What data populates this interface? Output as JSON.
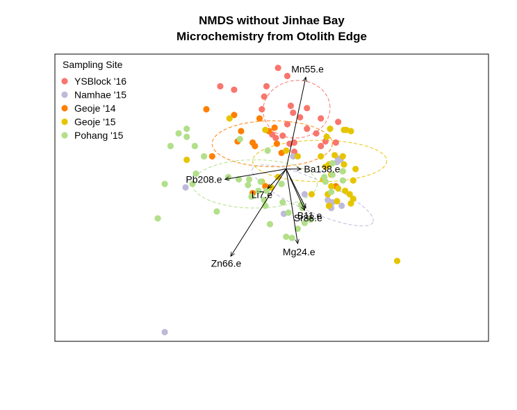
{
  "chart_data": {
    "type": "scatter",
    "title": "NMDS without Jinhae Bay",
    "subtitle": "Microchemistry from Otolith Edge",
    "xlabel": "",
    "ylabel": "",
    "xlim": [
      -2.0,
      1.75
    ],
    "ylim": [
      -1.5,
      1.0
    ],
    "grid": false,
    "legend": {
      "title": "Sampling Site",
      "placement": "top-left"
    },
    "series": [
      {
        "name": "YSBlock '16",
        "color": "#F8766D",
        "points": [
          [
            -0.07,
            0.88
          ],
          [
            0.01,
            0.81
          ],
          [
            -0.57,
            0.72
          ],
          [
            -0.45,
            0.69
          ],
          [
            -0.17,
            0.72
          ],
          [
            -0.19,
            0.63
          ],
          [
            0.04,
            0.55
          ],
          [
            0.18,
            0.53
          ],
          [
            -0.21,
            0.52
          ],
          [
            0.06,
            0.49
          ],
          [
            0.12,
            0.45
          ],
          [
            0.3,
            0.44
          ],
          [
            0.45,
            0.41
          ],
          [
            0.01,
            0.39
          ],
          [
            0.18,
            0.35
          ],
          [
            -0.12,
            0.3
          ],
          [
            -0.03,
            0.29
          ],
          [
            0.26,
            0.31
          ],
          [
            0.43,
            0.23
          ],
          [
            0.07,
            0.23
          ],
          [
            -0.09,
            0.27
          ],
          [
            0.3,
            0.2
          ],
          [
            0.34,
            0.24
          ],
          [
            0.03,
            0.22
          ],
          [
            0.07,
            0.15
          ]
        ]
      },
      {
        "name": "Namhae '15",
        "color": "#BEBADA",
        "points": [
          [
            -1.05,
            -1.42
          ],
          [
            -0.87,
            -0.16
          ],
          [
            0.06,
            0.11
          ],
          [
            0.16,
            -0.22
          ],
          [
            0.45,
            0.09
          ],
          [
            0.36,
            -0.27
          ],
          [
            0.4,
            -0.29
          ],
          [
            0.48,
            -0.32
          ],
          [
            0.39,
            -0.34
          ],
          [
            -0.02,
            -0.39
          ],
          [
            0.44,
            0.06
          ],
          [
            0.47,
            0.08
          ]
        ]
      },
      {
        "name": "Geoje '14",
        "color": "#FF7F00",
        "points": [
          [
            -0.69,
            0.52
          ],
          [
            -0.45,
            0.47
          ],
          [
            -0.23,
            0.44
          ],
          [
            -0.1,
            0.36
          ],
          [
            -0.39,
            0.33
          ],
          [
            -0.42,
            0.24
          ],
          [
            -0.29,
            0.23
          ],
          [
            -0.08,
            0.22
          ],
          [
            -0.64,
            0.11
          ],
          [
            -0.15,
            0.33
          ],
          [
            -0.27,
            0.2
          ],
          [
            -0.04,
            0.14
          ],
          [
            -0.29,
            -0.21
          ],
          [
            -0.18,
            -0.15
          ],
          [
            0.43,
            -0.15
          ]
        ]
      },
      {
        "name": "Geoje '15",
        "color": "#E6C500",
        "points": [
          [
            -0.49,
            0.44
          ],
          [
            -0.18,
            0.34
          ],
          [
            0.38,
            0.35
          ],
          [
            0.5,
            0.34
          ],
          [
            0.52,
            0.34
          ],
          [
            0.56,
            0.33
          ],
          [
            0.35,
            0.28
          ],
          [
            0.6,
            0.0
          ],
          [
            0.5,
            0.04
          ],
          [
            0.34,
            0.02
          ],
          [
            0.49,
            -0.02
          ],
          [
            0.39,
            -0.05
          ],
          [
            0.32,
            -0.09
          ],
          [
            0.58,
            -0.1
          ],
          [
            0.45,
            -0.17
          ],
          [
            0.51,
            -0.19
          ],
          [
            0.56,
            -0.3
          ],
          [
            0.58,
            -0.26
          ],
          [
            0.36,
            -0.22
          ],
          [
            0.37,
            -0.32
          ],
          [
            0.22,
            -0.22
          ],
          [
            0.39,
            -0.15
          ],
          [
            0.3,
            0.11
          ],
          [
            0.42,
            0.12
          ],
          [
            0.37,
            0.04
          ],
          [
            0.44,
            -0.28
          ],
          [
            0.55,
            -0.22
          ],
          [
            0.96,
            -0.8
          ],
          [
            0.49,
            0.11
          ],
          [
            -0.86,
            0.08
          ],
          [
            0.0,
            0.16
          ],
          [
            0.1,
            0.11
          ],
          [
            -0.21,
            -0.11
          ],
          [
            -0.07,
            -0.07
          ],
          [
            -0.13,
            -0.16
          ]
        ]
      },
      {
        "name": "Pohang '15",
        "color": "#B2DF8A",
        "points": [
          [
            -0.86,
            0.35
          ],
          [
            -0.86,
            0.28
          ],
          [
            -0.93,
            0.31
          ],
          [
            -1.0,
            0.2
          ],
          [
            -0.79,
            0.2
          ],
          [
            -0.71,
            0.11
          ],
          [
            -0.78,
            -0.04
          ],
          [
            -0.81,
            -0.13
          ],
          [
            -1.05,
            -0.13
          ],
          [
            -0.5,
            -0.07
          ],
          [
            -0.41,
            -0.09
          ],
          [
            -0.32,
            -0.09
          ],
          [
            -0.33,
            -0.14
          ],
          [
            -0.22,
            -0.11
          ],
          [
            -0.24,
            -0.19
          ],
          [
            -0.3,
            -0.24
          ],
          [
            -0.17,
            -0.19
          ],
          [
            -0.18,
            -0.32
          ],
          [
            -0.03,
            -0.29
          ],
          [
            0.02,
            -0.38
          ],
          [
            0.13,
            -0.31
          ],
          [
            0.14,
            -0.34
          ],
          [
            0.21,
            -0.44
          ],
          [
            0.16,
            -0.47
          ],
          [
            0.33,
            -0.07
          ],
          [
            0.34,
            -0.11
          ],
          [
            -0.6,
            -0.37
          ],
          [
            -1.11,
            -0.43
          ],
          [
            0.0,
            -0.59
          ],
          [
            0.05,
            -0.6
          ],
          [
            0.1,
            -0.52
          ],
          [
            -0.14,
            -0.48
          ],
          [
            -0.19,
            -0.27
          ],
          [
            -0.04,
            -0.13
          ],
          [
            -0.16,
            0.16
          ],
          [
            0.4,
            0.05
          ],
          [
            0.4,
            -0.05
          ],
          [
            0.49,
            -0.02
          ],
          [
            0.49,
            -0.1
          ],
          [
            0.39,
            -0.2
          ],
          [
            -0.4,
            0.26
          ]
        ]
      }
    ],
    "vectors": [
      {
        "label": "Mn55.e",
        "end": [
          0.17,
          0.8
        ]
      },
      {
        "label": "Ba138.e",
        "end": [
          0.13,
          0.0
        ]
      },
      {
        "label": "Pb208.e",
        "end": [
          -0.53,
          -0.09
        ]
      },
      {
        "label": "Li7.e",
        "end": [
          -0.16,
          -0.17
        ]
      },
      {
        "label": "Sr88.e",
        "end": [
          0.16,
          -0.36
        ]
      },
      {
        "label": "B11.e",
        "end": [
          0.17,
          -0.34
        ]
      },
      {
        "label": "Mg24.e",
        "end": [
          0.1,
          -0.65
        ]
      },
      {
        "label": "Zn66.e",
        "end": [
          -0.48,
          -0.76
        ]
      }
    ],
    "ellipses": [
      {
        "series": "YSBlock '16",
        "center": [
          0.09,
          0.52
        ],
        "rx": 0.29,
        "ry": 0.25,
        "angle": -8
      },
      {
        "series": "Namhae '15",
        "center": [
          0.23,
          -0.23
        ],
        "rx": 0.57,
        "ry": 0.14,
        "angle": 24
      },
      {
        "series": "Geoje '14",
        "center": [
          -0.12,
          0.22
        ],
        "rx": 0.52,
        "ry": 0.2,
        "angle": 0
      },
      {
        "series": "Geoje '15",
        "center": [
          0.29,
          0.07
        ],
        "rx": 0.58,
        "ry": 0.18,
        "angle": 0
      },
      {
        "series": "Pohang '15",
        "center": [
          -0.27,
          -0.13
        ],
        "rx": 0.54,
        "ry": 0.21,
        "angle": 0
      }
    ]
  }
}
